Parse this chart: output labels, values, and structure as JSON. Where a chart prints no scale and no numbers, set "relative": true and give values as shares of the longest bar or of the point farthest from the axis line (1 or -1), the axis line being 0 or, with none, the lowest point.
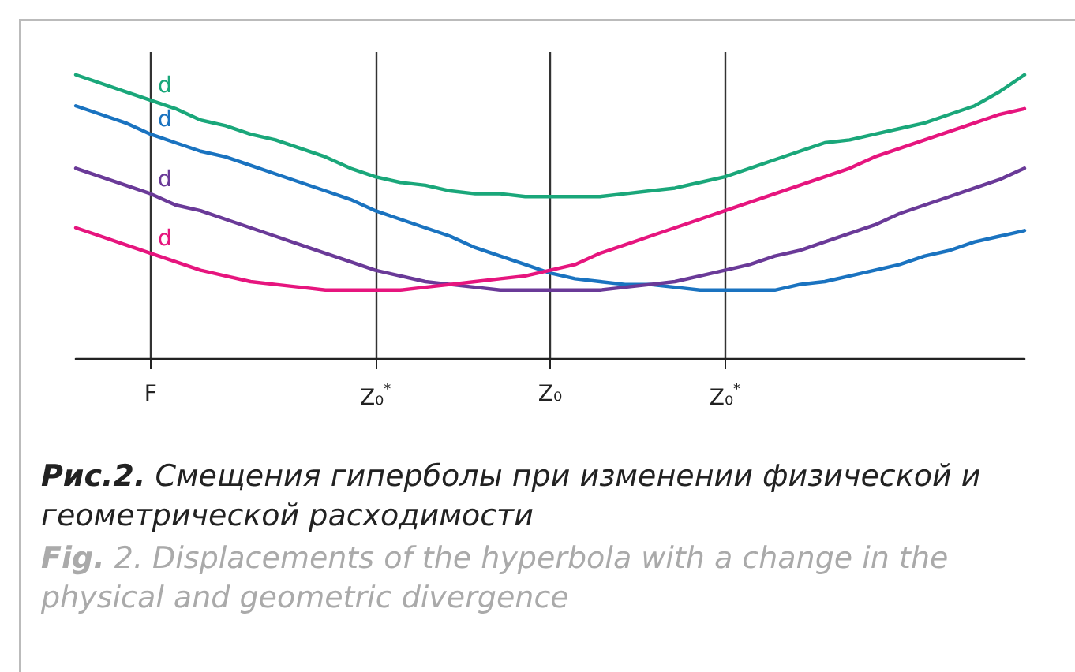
{
  "chart_data": {
    "type": "line",
    "relative": true,
    "title": "Рис.2. Смещения гиперболы при изменении физической и геометрической расходимости",
    "subtitle": "Fig. 2. Displacements of the hyperbola with a change in the physical and geometric divergence",
    "categories": [
      null,
      null,
      null,
      "F",
      null,
      null,
      null,
      null,
      null,
      null,
      null,
      null,
      "Z₀$^{*}$",
      null,
      null,
      null,
      null,
      null,
      null,
      "Z₀",
      null,
      null,
      null,
      null,
      null,
      null,
      "Z₀$^{*}$",
      null,
      null,
      null,
      null,
      null,
      null,
      null,
      null,
      null,
      null,
      null,
      null
    ],
    "series": [
      {
        "name": "d",
        "color": "#1aa77a",
        "values": [
          1.0,
          0.97,
          0.94,
          0.91,
          0.88,
          0.84,
          0.82,
          0.79,
          0.77,
          0.74,
          0.71,
          0.67,
          0.64,
          0.62,
          0.61,
          0.59,
          0.58,
          0.58,
          0.57,
          0.57,
          0.57,
          0.57,
          0.58,
          0.59,
          0.6,
          0.62,
          0.64,
          0.67,
          0.7,
          0.73,
          0.76,
          0.77,
          0.79,
          0.81,
          0.83,
          0.86,
          0.89,
          0.94,
          1.0
        ]
      },
      {
        "name": "d",
        "color": "#1a73c0",
        "values": [
          0.89,
          0.86,
          0.83,
          0.79,
          0.76,
          0.73,
          0.71,
          0.68,
          0.65,
          0.62,
          0.59,
          0.56,
          0.52,
          0.49,
          0.46,
          0.43,
          0.39,
          0.36,
          0.33,
          0.3,
          0.28,
          0.27,
          0.26,
          0.26,
          0.25,
          0.24,
          0.24,
          0.24,
          0.24,
          0.26,
          0.27,
          0.29,
          0.31,
          0.33,
          0.36,
          0.38,
          0.41,
          0.43,
          0.45
        ]
      },
      {
        "name": "d",
        "color": "#6a3a98",
        "values": [
          0.67,
          0.64,
          0.61,
          0.58,
          0.54,
          0.52,
          0.49,
          0.46,
          0.43,
          0.4,
          0.37,
          0.34,
          0.31,
          0.29,
          0.27,
          0.26,
          0.25,
          0.24,
          0.24,
          0.24,
          0.24,
          0.24,
          0.25,
          0.26,
          0.27,
          0.29,
          0.31,
          0.33,
          0.36,
          0.38,
          0.41,
          0.44,
          0.47,
          0.51,
          0.54,
          0.57,
          0.6,
          0.63,
          0.67
        ]
      },
      {
        "name": "d",
        "color": "#e6157e",
        "values": [
          0.46,
          0.43,
          0.4,
          0.37,
          0.34,
          0.31,
          0.29,
          0.27,
          0.26,
          0.25,
          0.24,
          0.24,
          0.24,
          0.24,
          0.25,
          0.26,
          0.27,
          0.28,
          0.29,
          0.31,
          0.33,
          0.37,
          0.4,
          0.43,
          0.46,
          0.49,
          0.52,
          0.55,
          0.58,
          0.61,
          0.64,
          0.67,
          0.71,
          0.74,
          0.77,
          0.8,
          0.83,
          0.86,
          0.88
        ]
      }
    ],
    "grid": "x",
    "legend": false,
    "marker": "none",
    "line_style": "solid"
  }
}
